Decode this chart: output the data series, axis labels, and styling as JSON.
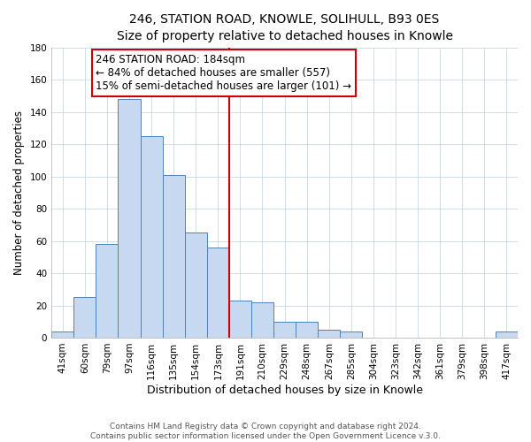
{
  "title": "246, STATION ROAD, KNOWLE, SOLIHULL, B93 0ES",
  "subtitle": "Size of property relative to detached houses in Knowle",
  "xlabel": "Distribution of detached houses by size in Knowle",
  "ylabel": "Number of detached properties",
  "footer_lines": [
    "Contains HM Land Registry data © Crown copyright and database right 2024.",
    "Contains public sector information licensed under the Open Government Licence v.3.0."
  ],
  "bin_labels": [
    "41sqm",
    "60sqm",
    "79sqm",
    "97sqm",
    "116sqm",
    "135sqm",
    "154sqm",
    "173sqm",
    "191sqm",
    "210sqm",
    "229sqm",
    "248sqm",
    "267sqm",
    "285sqm",
    "304sqm",
    "323sqm",
    "342sqm",
    "361sqm",
    "379sqm",
    "398sqm",
    "417sqm"
  ],
  "bar_heights": [
    4,
    25,
    58,
    148,
    125,
    101,
    65,
    56,
    23,
    22,
    10,
    10,
    5,
    4,
    0,
    0,
    0,
    0,
    0,
    0,
    4
  ],
  "bar_color": "#c6d9f1",
  "bar_edge_color": "#4f81bd",
  "vline_color": "#cc0000",
  "annotation_text": "246 STATION ROAD: 184sqm\n← 84% of detached houses are smaller (557)\n15% of semi-detached houses are larger (101) →",
  "annotation_box_color": "white",
  "annotation_box_edge_color": "#cc0000",
  "ylim": [
    0,
    180
  ],
  "yticks": [
    0,
    20,
    40,
    60,
    80,
    100,
    120,
    140,
    160,
    180
  ],
  "title_fontsize": 10,
  "subtitle_fontsize": 9,
  "xlabel_fontsize": 9,
  "ylabel_fontsize": 8.5,
  "tick_fontsize": 7.5,
  "annotation_fontsize": 8.5,
  "footer_fontsize": 6.5
}
